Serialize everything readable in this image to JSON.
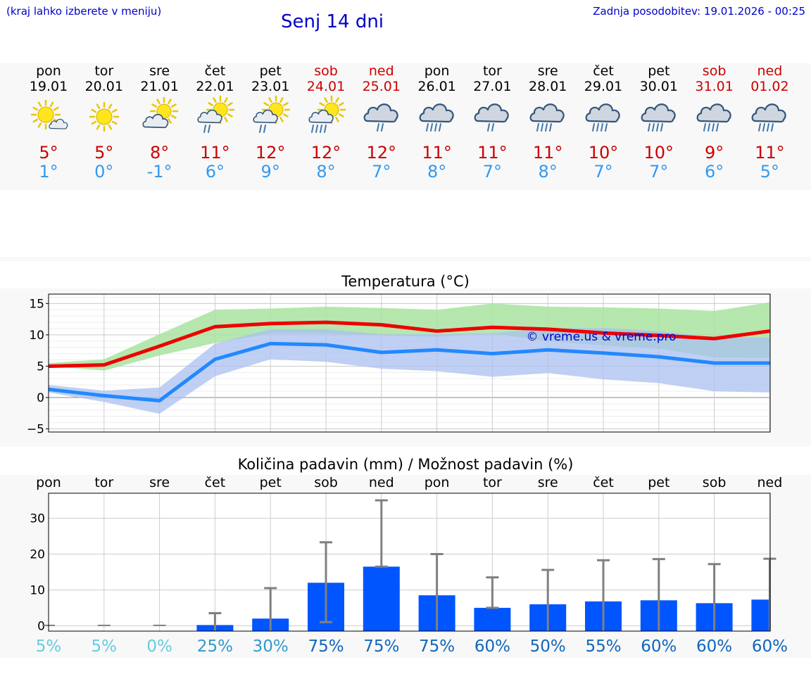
{
  "header": {
    "note": "(kraj lahko izberete v meniju)",
    "title": "Senj 14 dni",
    "updated": "Zadnja posodobitev: 19.01.2026 - 00:25"
  },
  "days": [
    {
      "name": "pon",
      "date": "19.01",
      "icon": "sun-cloud-icon",
      "tmax": "5°",
      "tmin": "1°",
      "weekend": false
    },
    {
      "name": "tor",
      "date": "20.01",
      "icon": "sun-icon",
      "tmax": "5°",
      "tmin": "0°",
      "weekend": false
    },
    {
      "name": "sre",
      "date": "21.01",
      "icon": "cloud-sun-icon",
      "tmax": "8°",
      "tmin": "-1°",
      "weekend": false
    },
    {
      "name": "čet",
      "date": "22.01",
      "icon": "sun-cloud-rain-icon",
      "tmax": "11°",
      "tmin": "6°",
      "weekend": false
    },
    {
      "name": "pet",
      "date": "23.01",
      "icon": "sun-cloud-rain-icon",
      "tmax": "12°",
      "tmin": "9°",
      "weekend": false
    },
    {
      "name": "sob",
      "date": "24.01",
      "icon": "sun-cloud-heavy-rain-icon",
      "tmax": "12°",
      "tmin": "8°",
      "weekend": true
    },
    {
      "name": "ned",
      "date": "25.01",
      "icon": "cloud-rain-icon",
      "tmax": "12°",
      "tmin": "7°",
      "weekend": true
    },
    {
      "name": "pon",
      "date": "26.01",
      "icon": "cloud-heavy-rain-icon",
      "tmax": "11°",
      "tmin": "8°",
      "weekend": false
    },
    {
      "name": "tor",
      "date": "27.01",
      "icon": "cloud-rain-icon",
      "tmax": "11°",
      "tmin": "7°",
      "weekend": false
    },
    {
      "name": "sre",
      "date": "28.01",
      "icon": "cloud-heavy-rain-icon",
      "tmax": "11°",
      "tmin": "8°",
      "weekend": false
    },
    {
      "name": "čet",
      "date": "29.01",
      "icon": "cloud-heavy-rain-icon",
      "tmax": "10°",
      "tmin": "7°",
      "weekend": false
    },
    {
      "name": "pet",
      "date": "30.01",
      "icon": "cloud-heavy-rain-icon",
      "tmax": "10°",
      "tmin": "7°",
      "weekend": false
    },
    {
      "name": "sob",
      "date": "31.01",
      "icon": "cloud-heavy-rain-icon",
      "tmax": "9°",
      "tmin": "6°",
      "weekend": true
    },
    {
      "name": "ned",
      "date": "01.02",
      "icon": "cloud-heavy-rain-icon",
      "tmax": "11°",
      "tmin": "5°",
      "weekend": true
    }
  ],
  "colors": {
    "max_line": "#ee0000",
    "min_line": "#2288ff",
    "max_band": "#a8e3a0",
    "min_band": "#a9c0f0",
    "overlap_band": "#7cbfa2",
    "bar": "#0055ff",
    "whisker": "#808080",
    "watermark": "#0000cc"
  },
  "chart_data": [
    {
      "type": "line",
      "title": "Temperatura (°C)",
      "watermark": "© vreme.us & vreme.pro",
      "ylim": [
        -5.5,
        16.5
      ],
      "yticks": [
        -5,
        0,
        5,
        10,
        15
      ],
      "ytick_labels": [
        "−5",
        "0",
        "5",
        "10",
        "15"
      ],
      "x": [
        0,
        1,
        2,
        3,
        4,
        5,
        6,
        7,
        8,
        9,
        10,
        11,
        12,
        13
      ],
      "series": [
        {
          "name": "max",
          "values": [
            5,
            5.2,
            8.2,
            11.3,
            11.8,
            12,
            11.6,
            10.6,
            11.2,
            10.9,
            10.3,
            9.9,
            9.4,
            10.6
          ],
          "band_low": [
            5,
            4.3,
            6.7,
            8.7,
            10.2,
            10.2,
            9.9,
            9.7,
            10.2,
            9.0,
            8.3,
            7.8,
            6.4,
            6.3
          ],
          "band_high": [
            5.5,
            6.1,
            10.1,
            14.0,
            14.2,
            14.5,
            14.3,
            14.0,
            15.0,
            14.5,
            14.4,
            14.2,
            13.8,
            15.2
          ]
        },
        {
          "name": "min",
          "values": [
            1.3,
            0.3,
            -0.5,
            6.1,
            8.6,
            8.4,
            7.2,
            7.6,
            7.0,
            7.6,
            7.1,
            6.5,
            5.5,
            5.5
          ],
          "band_low": [
            0.8,
            -0.7,
            -2.6,
            3.4,
            6.1,
            5.7,
            4.6,
            4.2,
            3.3,
            3.9,
            2.9,
            2.3,
            1.0,
            0.8
          ],
          "band_high": [
            2.0,
            1.1,
            1.6,
            8.6,
            10.9,
            10.9,
            10.1,
            10.1,
            10.3,
            11.0,
            11.1,
            10.6,
            9.6,
            9.6
          ]
        }
      ]
    },
    {
      "type": "bar",
      "title": "Količina padavin (mm) / Možnost padavin (%)",
      "categories": [
        "pon",
        "tor",
        "sre",
        "čet",
        "pet",
        "sob",
        "ned",
        "pon",
        "tor",
        "sre",
        "čet",
        "pet",
        "sob",
        "ned"
      ],
      "ylim": [
        -1.5,
        37
      ],
      "yticks": [
        0,
        10,
        20,
        30
      ],
      "ytick_labels": [
        "0",
        "10",
        "20",
        "30"
      ],
      "values": [
        0,
        0,
        0,
        0.2,
        2,
        12,
        16.5,
        8.5,
        5,
        6,
        6.8,
        7.1,
        6.3,
        7.3
      ],
      "error_high": [
        0,
        0,
        0,
        3.5,
        10.5,
        23.3,
        35,
        20,
        13.5,
        15.6,
        18.3,
        18.6,
        17.2,
        18.7
      ],
      "error_low": [
        0,
        0,
        0,
        0,
        0,
        1,
        16.5,
        0,
        5,
        0,
        0,
        0,
        0,
        0
      ],
      "probability": [
        "5%",
        "5%",
        "0%",
        "25%",
        "30%",
        "75%",
        "75%",
        "75%",
        "60%",
        "50%",
        "55%",
        "60%",
        "60%",
        "60%"
      ],
      "probability_colors": [
        "#66ccdd",
        "#66ccdd",
        "#66ccdd",
        "#3399cc",
        "#3399cc",
        "#1166bb",
        "#1166bb",
        "#1166bb",
        "#1166bb",
        "#1166bb",
        "#1166bb",
        "#1166bb",
        "#1166bb",
        "#1166bb"
      ]
    }
  ]
}
